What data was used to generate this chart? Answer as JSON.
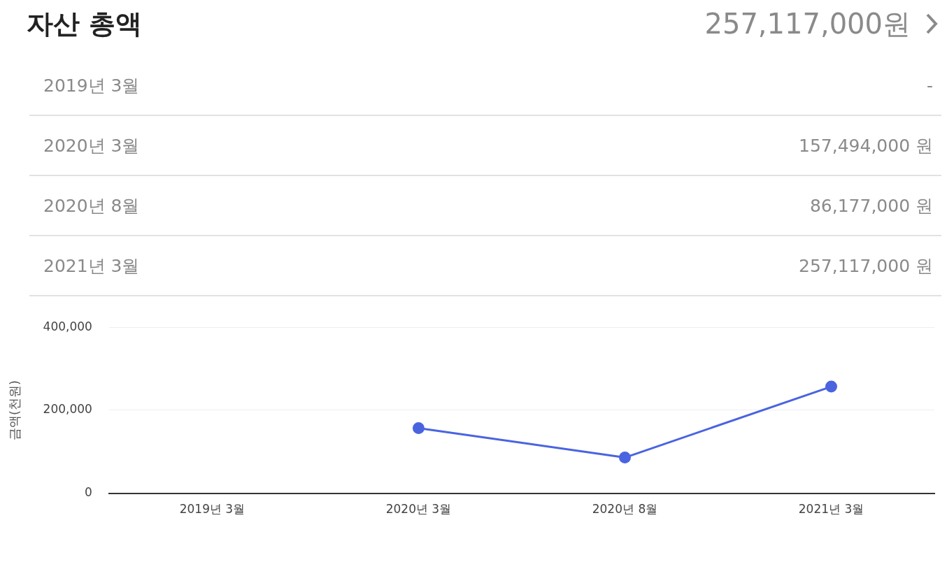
{
  "chart_data": [
    {
      "type": "other",
      "title": "자산 총액",
      "annotations": [
        "257,117,000원",
        "2019년 3월",
        "-",
        "2020년 3월",
        "157,494,000 원",
        "2020년 8월",
        "86,177,000 원",
        "2021년 3월",
        "257,117,000 원"
      ]
    },
    {
      "type": "line",
      "categories": [
        "2019년 3월",
        "2020년 3월",
        "2020년 8월",
        "2021년 3월"
      ],
      "series": [
        {
          "color": "#4a64e0",
          "values": [
            null,
            157000,
            86000,
            257000
          ]
        }
      ],
      "ylabel": "금액(천원)",
      "ylim": [
        0,
        400000
      ],
      "yticks": [
        0,
        {
          "value": 200000,
          "label": "200,000"
        },
        {
          "value": 400000,
          "label": "400,000"
        }
      ],
      "grid": "y",
      "marker": "circle",
      "line_style": "solid"
    }
  ]
}
